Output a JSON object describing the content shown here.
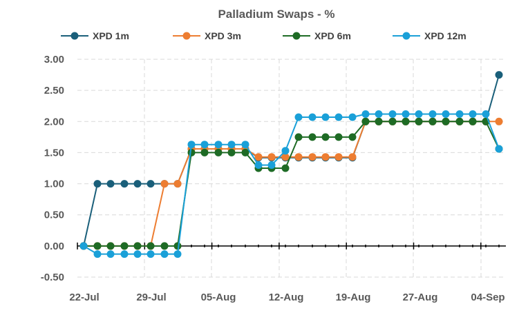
{
  "chart_data": {
    "type": "line",
    "title": "Palladium Swaps - %",
    "xlabel": "",
    "ylabel": "",
    "ylim": [
      -0.5,
      3.0
    ],
    "yticks": [
      "3.00",
      "2.50",
      "2.00",
      "1.50",
      "1.00",
      "0.50",
      "0.00",
      "-0.50"
    ],
    "xtick_labels": [
      "22-Jul",
      "29-Jul",
      "05-Aug",
      "12-Aug",
      "19-Aug",
      "27-Aug",
      "04-Sep"
    ],
    "legend_position": "top",
    "grid": true,
    "x": [
      "22-Jul",
      "23-Jul",
      "24-Jul",
      "25-Jul",
      "26-Jul",
      "29-Jul",
      "30-Jul",
      "31-Jul",
      "01-Aug",
      "02-Aug",
      "05-Aug",
      "06-Aug",
      "07-Aug",
      "08-Aug",
      "09-Aug",
      "12-Aug",
      "13-Aug",
      "14-Aug",
      "15-Aug",
      "16-Aug",
      "19-Aug",
      "20-Aug",
      "21-Aug",
      "22-Aug",
      "23-Aug",
      "26-Aug",
      "27-Aug",
      "28-Aug",
      "29-Aug",
      "30-Aug",
      "02-Sep",
      "03-Sep"
    ],
    "series": [
      {
        "name": "XPD 1m",
        "color": "#1a5f7a",
        "values": [
          0,
          1,
          1,
          1,
          1,
          1,
          1,
          1,
          1.56,
          1.56,
          1.56,
          1.56,
          1.56,
          1.42,
          1.42,
          1.42,
          1.42,
          1.42,
          1.42,
          1.42,
          1.42,
          2.0,
          2.0,
          2.0,
          2.0,
          2.0,
          2.0,
          2.0,
          2.0,
          2.0,
          2.0,
          2.75
        ]
      },
      {
        "name": "XPD 3m",
        "color": "#ed7d31",
        "values": [
          0,
          0,
          0,
          0,
          0,
          0,
          1,
          1,
          1.56,
          1.56,
          1.56,
          1.56,
          1.56,
          1.43,
          1.43,
          1.43,
          1.43,
          1.43,
          1.43,
          1.43,
          1.43,
          2.0,
          2.0,
          2.0,
          2.0,
          2.0,
          2.0,
          2.0,
          2.0,
          2.0,
          2.0,
          2.0
        ]
      },
      {
        "name": "XPD 6m",
        "color": "#1e6b25",
        "values": [
          0,
          0,
          0,
          0,
          0,
          0,
          0,
          0,
          1.5,
          1.5,
          1.5,
          1.5,
          1.5,
          1.25,
          1.25,
          1.25,
          1.75,
          1.75,
          1.75,
          1.75,
          1.75,
          2.0,
          2.0,
          2.0,
          2.0,
          2.0,
          2.0,
          2.0,
          2.0,
          2.0,
          2.0,
          1.56
        ]
      },
      {
        "name": "XPD 12m",
        "color": "#1aa0d8",
        "values": [
          0,
          -0.13,
          -0.13,
          -0.13,
          -0.13,
          -0.13,
          -0.13,
          -0.13,
          1.63,
          1.63,
          1.63,
          1.63,
          1.63,
          1.3,
          1.3,
          1.53,
          2.07,
          2.07,
          2.07,
          2.07,
          2.07,
          2.12,
          2.12,
          2.12,
          2.12,
          2.12,
          2.12,
          2.12,
          2.12,
          2.12,
          2.12,
          1.56
        ]
      }
    ]
  }
}
